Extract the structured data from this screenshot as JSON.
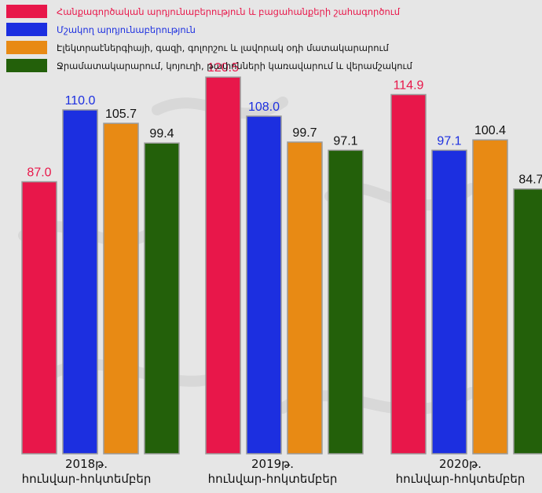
{
  "chart_data": {
    "type": "bar",
    "categories": [
      {
        "year": "2018թ.",
        "period": "հունվար-հոկտեմբեր"
      },
      {
        "year": "2019թ.",
        "period": "հունվար-հոկտեմբեր"
      },
      {
        "year": "2020թ.",
        "period": "հունվար-հոկտեմբեր"
      }
    ],
    "series": [
      {
        "name": "Հանքագործական արդյունաբերություն և բացահանքերի շահագործում",
        "color": "#e8174a",
        "label_color": "#e8174a",
        "values": [
          87.0,
          120.5,
          114.9
        ]
      },
      {
        "name": "Մշակող արդյունաբերություն",
        "color": "#1c2fe0",
        "label_color": "#1c2fe0",
        "values": [
          110.0,
          108.0,
          97.1
        ]
      },
      {
        "name": "Էլեկտրաէներգիայի, գազի, գոլորշու և լավորակ օդի մատակարարում",
        "color": "#e88a14",
        "label_color": "#111111",
        "values": [
          105.7,
          99.7,
          100.4
        ]
      },
      {
        "name": "Ջրամատակարարում, կոյուղի, թափոնների կառավարում և վերամշակում",
        "color": "#23600a",
        "label_color": "#111111",
        "values": [
          99.4,
          97.1,
          84.7
        ]
      }
    ],
    "value_labels": [
      [
        "87.0",
        "120.5",
        "114.9"
      ],
      [
        "110.0",
        "108.0",
        "97.1"
      ],
      [
        "105.7",
        "99.7",
        "100.4"
      ],
      [
        "99.4",
        "97.1",
        "84.7"
      ]
    ],
    "legend_text_colors": [
      "#e8174a",
      "#1c2fe0",
      "#111111",
      "#111111"
    ],
    "legend_position": "top-left",
    "grid": false
  }
}
